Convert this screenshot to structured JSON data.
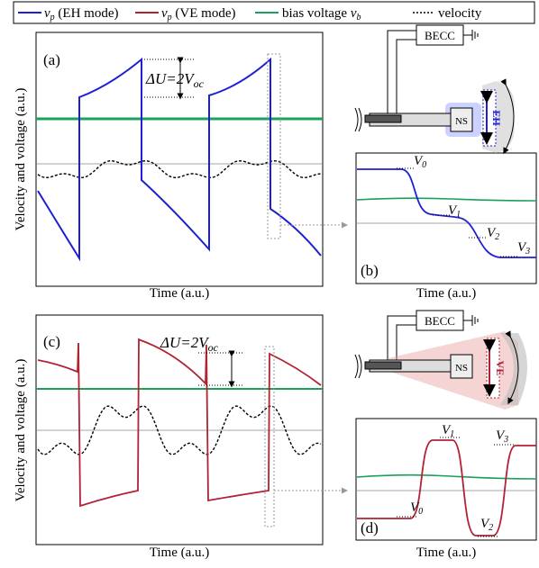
{
  "legend": [
    {
      "symbol": "v",
      "subscript": "p",
      "label": "(EH mode)"
    },
    {
      "symbol": "v",
      "subscript": "p",
      "label": "(VE mode)"
    },
    {
      "label": "bias voltage",
      "symbol": "v",
      "subscript": "b"
    },
    {
      "label": "velocity"
    }
  ],
  "panels": [
    {
      "label": "(a)",
      "x_label": "Time (a.u.)",
      "y_label": "Velocity and voltage (a.u.)",
      "annotation": {
        "main": "ΔU=2V",
        "subscript": "oc"
      }
    },
    {
      "label": "(b)",
      "x_label": "Time (a.u.)",
      "levels": [
        {
          "symbol": "V",
          "subscript": "0"
        },
        {
          "symbol": "V",
          "subscript": "1"
        },
        {
          "symbol": "V",
          "subscript": "2"
        },
        {
          "symbol": "V",
          "subscript": "3"
        }
      ]
    },
    {
      "label": "(c)",
      "x_label": "Time (a.u.)",
      "y_label": "Velocity and voltage (a.u.)",
      "annotation": {
        "main": "ΔU=2V",
        "subscript": "oc"
      }
    },
    {
      "label": "(d)",
      "x_label": "Time (a.u.)",
      "levels": [
        {
          "symbol": "V",
          "subscript": "0"
        },
        {
          "symbol": "V",
          "subscript": "1"
        },
        {
          "symbol": "V",
          "subscript": "2"
        },
        {
          "symbol": "V",
          "subscript": "3"
        }
      ]
    }
  ],
  "schematics": [
    {
      "box": "BECC",
      "magnet": "NS",
      "mode": "EH"
    },
    {
      "box": "BECC",
      "magnet": "NS",
      "mode": "VE"
    }
  ]
}
